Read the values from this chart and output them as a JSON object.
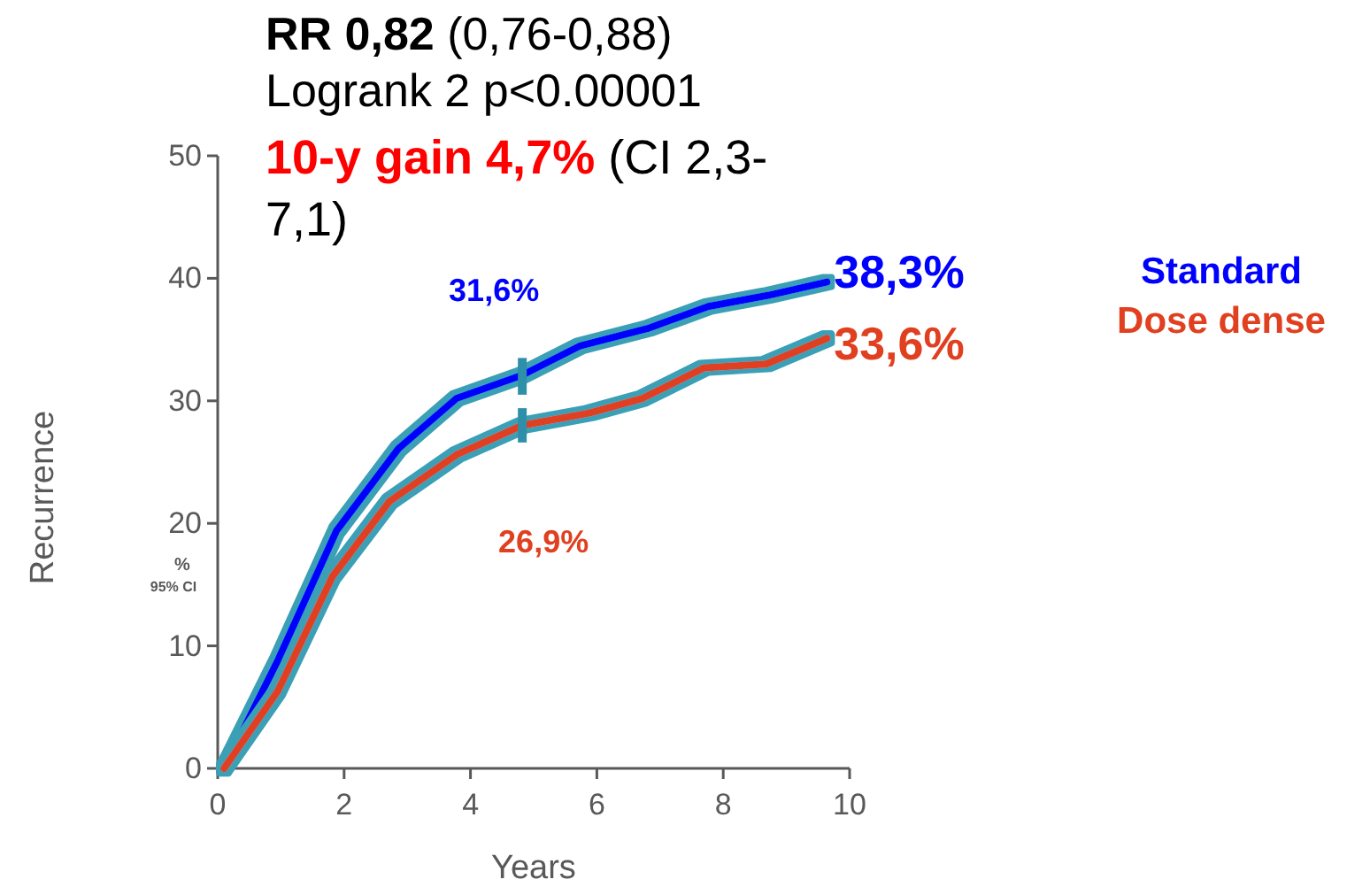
{
  "chart_data": {
    "type": "line",
    "title": "RR 0,82 (0,76-0,88)",
    "subtitle": "Logrank 2 p<0.00001",
    "xlabel": "Years",
    "ylabel": "Recurrence",
    "xlim": [
      0,
      10
    ],
    "xticks": [
      0,
      2,
      4,
      6,
      8,
      10
    ],
    "ylim": [
      0,
      50
    ],
    "yticks": [
      0,
      10,
      20,
      30,
      40,
      50
    ],
    "legend": "right",
    "line_style": "solid",
    "marker": "none",
    "series": [
      {
        "name": "Standard",
        "color": "#0000ff",
        "x": [
          0.1,
          0.95,
          1.88,
          2.86,
          3.78,
          4.82,
          5.74,
          6.8,
          7.76,
          8.7,
          9.64
        ],
        "values": [
          0,
          8.8,
          19.4,
          26.1,
          30.2,
          32.1,
          34.5,
          35.9,
          37.7,
          38.6,
          39.7
        ],
        "errors": [
          null,
          null,
          null,
          null,
          null,
          [
            30.5,
            33.5
          ],
          null,
          null,
          null,
          null,
          null
        ]
      },
      {
        "name": "Dose dense",
        "color": "#e04020",
        "x": [
          0.1,
          0.95,
          1.82,
          2.72,
          3.78,
          4.82,
          5.88,
          6.72,
          7.7,
          8.68,
          9.64
        ],
        "values": [
          0,
          6.3,
          15.7,
          21.8,
          25.6,
          28.0,
          29.0,
          30.2,
          32.7,
          33.0,
          35.1
        ],
        "errors": [
          null,
          null,
          null,
          null,
          null,
          [
            26.6,
            29.4
          ],
          null,
          null,
          null,
          null,
          null
        ]
      }
    ],
    "annotations": [
      "10-y gain 4,7% (CI 2,3-7,1)",
      "%",
      "95% CI",
      "31,6%",
      "26,9%",
      "38,3%",
      "33,6%"
    ]
  }
}
